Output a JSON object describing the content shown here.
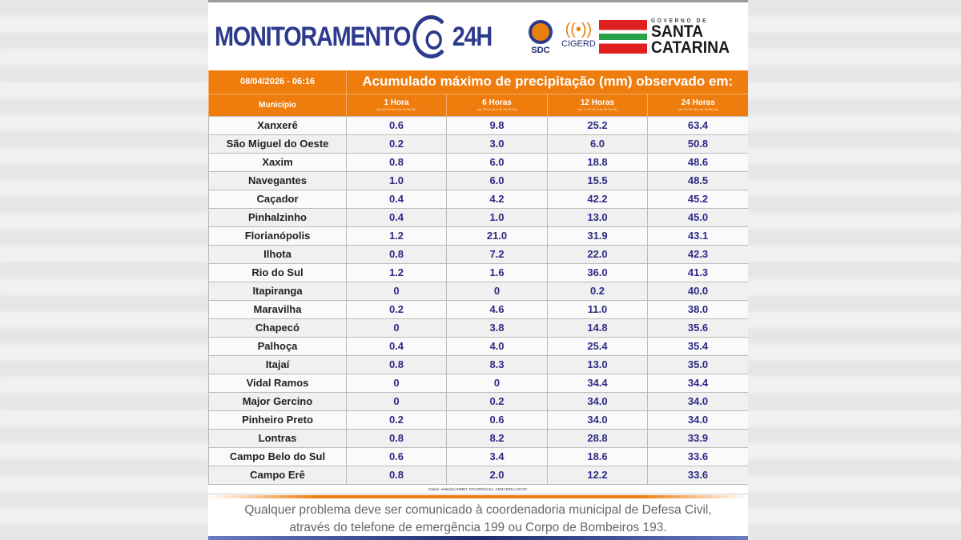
{
  "header": {
    "brand_left": "MONITORAMENTO",
    "brand_right": "24H",
    "logos": [
      "SDC",
      "CIGERD"
    ],
    "gov_small": "GOVERNO DE",
    "gov_line1": "SANTA",
    "gov_line2": "CATARINA"
  },
  "table": {
    "datetime": "08/04/2026 - 06:16",
    "title": "Acumulado máximo de precipitação (mm) observado em:",
    "columns": [
      {
        "label": "Município",
        "sub": ""
      },
      {
        "label": "1 Hora",
        "sub": "(de 05:15:16 a de 06:06:16)"
      },
      {
        "label": "6 Horas",
        "sub": "(de 00:06:16 a de 06:06:16)"
      },
      {
        "label": "12 Horas",
        "sub": "(de 17:15:16 a de 06:06:16)"
      },
      {
        "label": "24 Horas",
        "sub": "(de 07:06:16 a de 06:06:16)"
      }
    ],
    "rows": [
      [
        "Xanxerê",
        "0.6",
        "9.8",
        "25.2",
        "63.4"
      ],
      [
        "São Miguel do Oeste",
        "0.2",
        "3.0",
        "6.0",
        "50.8"
      ],
      [
        "Xaxim",
        "0.8",
        "6.0",
        "18.8",
        "48.6"
      ],
      [
        "Navegantes",
        "1.0",
        "6.0",
        "15.5",
        "48.5"
      ],
      [
        "Caçador",
        "0.4",
        "4.2",
        "42.2",
        "45.2"
      ],
      [
        "Pinhalzinho",
        "0.4",
        "1.0",
        "13.0",
        "45.0"
      ],
      [
        "Florianópolis",
        "1.2",
        "21.0",
        "31.9",
        "43.1"
      ],
      [
        "Ilhota",
        "0.8",
        "7.2",
        "22.0",
        "42.3"
      ],
      [
        "Rio do Sul",
        "1.2",
        "1.6",
        "36.0",
        "41.3"
      ],
      [
        "Itapiranga",
        "0",
        "0",
        "0.2",
        "40.0"
      ],
      [
        "Maravilha",
        "0.2",
        "4.6",
        "11.0",
        "38.0"
      ],
      [
        "Chapecó",
        "0",
        "3.8",
        "14.8",
        "35.6"
      ],
      [
        "Palhoça",
        "0.4",
        "4.0",
        "25.4",
        "35.4"
      ],
      [
        "Itajaí",
        "0.8",
        "8.3",
        "13.0",
        "35.0"
      ],
      [
        "Vidal Ramos",
        "0",
        "0",
        "34.4",
        "34.4"
      ],
      [
        "Major Gercino",
        "0",
        "0.2",
        "34.0",
        "34.0"
      ],
      [
        "Pinheiro Preto",
        "0.2",
        "0.6",
        "34.0",
        "34.0"
      ],
      [
        "Lontras",
        "0.8",
        "8.2",
        "28.8",
        "33.9"
      ],
      [
        "Campo Belo do Sul",
        "0.6",
        "3.4",
        "18.6",
        "33.6"
      ],
      [
        "Campo Erê",
        "0.8",
        "2.0",
        "12.2",
        "33.6"
      ]
    ],
    "source": "Dados: estações INMET, EPAGRI/Ciram, CEMADEN e DCSC"
  },
  "footer": {
    "line1": "Qualquer problema deve ser comunicado à coordenadoria municipal de Defesa Civil,",
    "line2": "através do telefone de emergência 199 ou Corpo de Bombeiros 193."
  },
  "colors": {
    "orange": "#ef7d0e",
    "navy": "#2e3a8c",
    "value_text": "#2e2a85"
  }
}
